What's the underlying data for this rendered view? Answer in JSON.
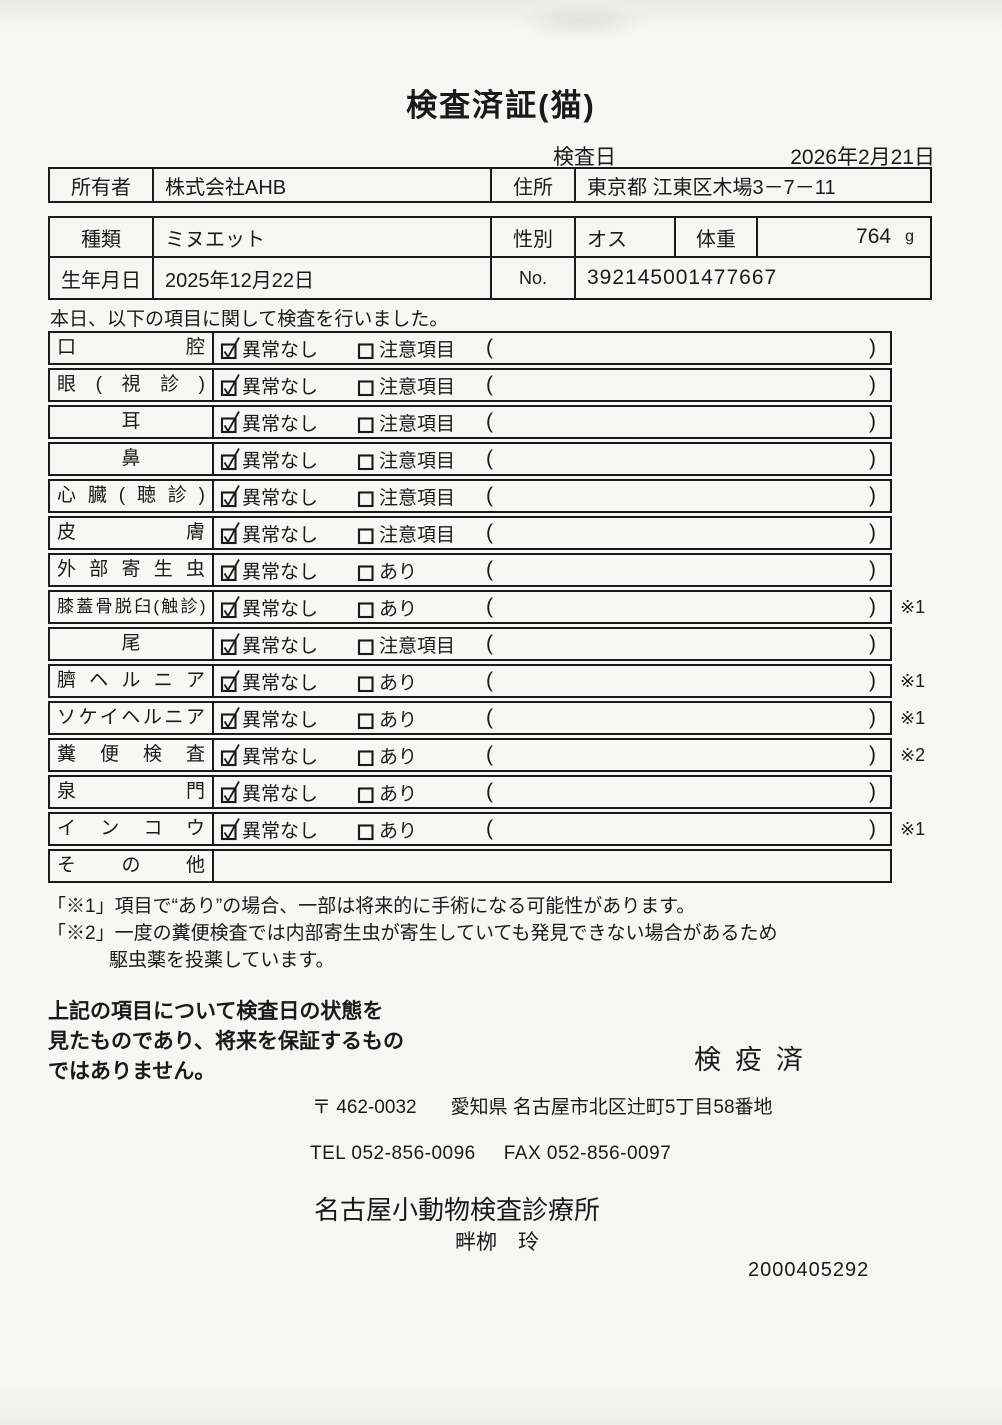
{
  "page": {
    "title": "検査済証(猫)",
    "exam_date_label": "検査日",
    "exam_date": "2026年2月21日"
  },
  "owner_table": {
    "owner_label": "所有者",
    "owner": "株式会社AHB",
    "address_label": "住所",
    "address": "東京都 江東区木場3－7－11"
  },
  "animal_table": {
    "breed_label": "種類",
    "breed": "ミヌエット",
    "sex_label": "性別",
    "sex": "オス",
    "weight_label": "体重",
    "weight": "764",
    "weight_unit": "g",
    "birth_label": "生年月日",
    "birth": "2025年12月22日",
    "no_label": "No.",
    "no": "392145001477667"
  },
  "intro": "本日、以下の項目に関して検査を行いました。",
  "checklist": {
    "normal_label": "異常なし",
    "paren_open": "(",
    "paren_close": ")",
    "rows": [
      {
        "label": "口腔",
        "align": "justify",
        "checked": true,
        "option2": "注意項目",
        "note": "",
        "mark": ""
      },
      {
        "label": "眼(視診)",
        "align": "justify",
        "checked": true,
        "option2": "注意項目",
        "note": "",
        "mark": ""
      },
      {
        "label": "耳",
        "align": "center",
        "checked": true,
        "option2": "注意項目",
        "note": "",
        "mark": ""
      },
      {
        "label": "鼻",
        "align": "center",
        "checked": true,
        "option2": "注意項目",
        "note": "",
        "mark": ""
      },
      {
        "label": "心臓(聴診)",
        "align": "justify",
        "checked": true,
        "option2": "注意項目",
        "note": "",
        "mark": ""
      },
      {
        "label": "皮膚",
        "align": "justify",
        "checked": true,
        "option2": "注意項目",
        "note": "",
        "mark": ""
      },
      {
        "label": "外部寄生虫",
        "align": "justify",
        "checked": true,
        "option2": "あり",
        "note": "",
        "mark": ""
      },
      {
        "label": "膝蓋骨脱臼(触診)",
        "align": "justify",
        "checked": true,
        "option2": "あり",
        "note": "",
        "mark": "※1"
      },
      {
        "label": "尾",
        "align": "center",
        "checked": true,
        "option2": "注意項目",
        "note": "",
        "mark": ""
      },
      {
        "label": "臍ヘルニア",
        "align": "justify",
        "checked": true,
        "option2": "あり",
        "note": "",
        "mark": "※1"
      },
      {
        "label": "ソケイヘルニア",
        "align": "justify",
        "checked": true,
        "option2": "あり",
        "note": "",
        "mark": "※1"
      },
      {
        "label": "糞便検査",
        "align": "justify",
        "checked": true,
        "option2": "あり",
        "note": "",
        "mark": "※2"
      },
      {
        "label": "泉門",
        "align": "justify",
        "checked": true,
        "option2": "あり",
        "note": "",
        "mark": ""
      },
      {
        "label": "インコウ",
        "align": "justify",
        "checked": true,
        "option2": "あり",
        "note": "",
        "mark": "※1"
      },
      {
        "label": "その他",
        "align": "justify",
        "checked": false,
        "option2": null,
        "note": "",
        "mark": "",
        "has_content": false
      }
    ]
  },
  "footnotes": [
    "「※1」項目で“あり”の場合、一部は将来的に手術になる可能性があります。",
    "「※2」一度の糞便検査では内部寄生虫が寄生していても発見できない場合があるため",
    "駆虫薬を投薬しています。"
  ],
  "disclaimer_lines": [
    "上記の項目について検査日の状態を",
    "見たものであり、将来を保証するもの",
    "ではありません。"
  ],
  "quarantine_stamp": "検疫済",
  "clinic": {
    "postal": "〒 462-0032",
    "address": "愛知県 名古屋市北区辻町5丁目58番地",
    "tel": "TEL 052-856-0096",
    "fax": "FAX 052-856-0097",
    "name": "名古屋小動物検査診療所",
    "person": "畔栁　玲",
    "serial": "2000405292"
  }
}
